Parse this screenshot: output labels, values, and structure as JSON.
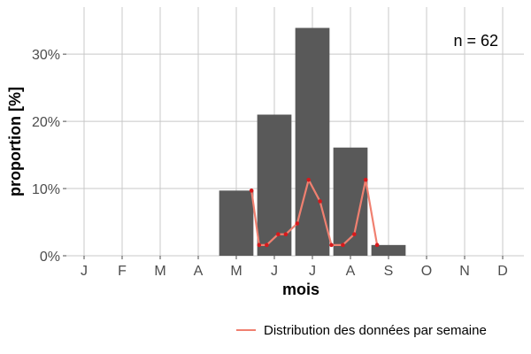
{
  "chart_data": {
    "type": "bar",
    "categories": [
      "J",
      "F",
      "M",
      "A",
      "M",
      "J",
      "J",
      "A",
      "S",
      "O",
      "N",
      "D"
    ],
    "values": [
      0,
      0,
      0,
      0,
      9.7,
      21.0,
      33.9,
      16.1,
      1.6,
      0,
      0,
      0
    ],
    "xlabel": "mois",
    "ylabel": "proportion [%]",
    "ylim": [
      0,
      37
    ],
    "yticks": [
      0,
      10,
      20,
      30
    ],
    "ytick_labels": [
      "0%",
      "10%",
      "20%",
      "30%"
    ],
    "grid": true,
    "annotation": "n = 62",
    "bar_color": "#595959",
    "series": [
      {
        "name": "Distribution des données par semaine",
        "color": "#f08070",
        "point_color": "#d7191c",
        "x": [
          5.4,
          5.6,
          5.8,
          6.1,
          6.3,
          6.6,
          6.9,
          7.2,
          7.5,
          7.8,
          8.1,
          8.4,
          8.7
        ],
        "values": [
          9.7,
          1.6,
          1.6,
          3.2,
          3.2,
          4.8,
          11.3,
          8.1,
          1.6,
          1.6,
          3.2,
          11.3,
          1.6
        ]
      }
    ],
    "legend_position": "bottom-right"
  }
}
